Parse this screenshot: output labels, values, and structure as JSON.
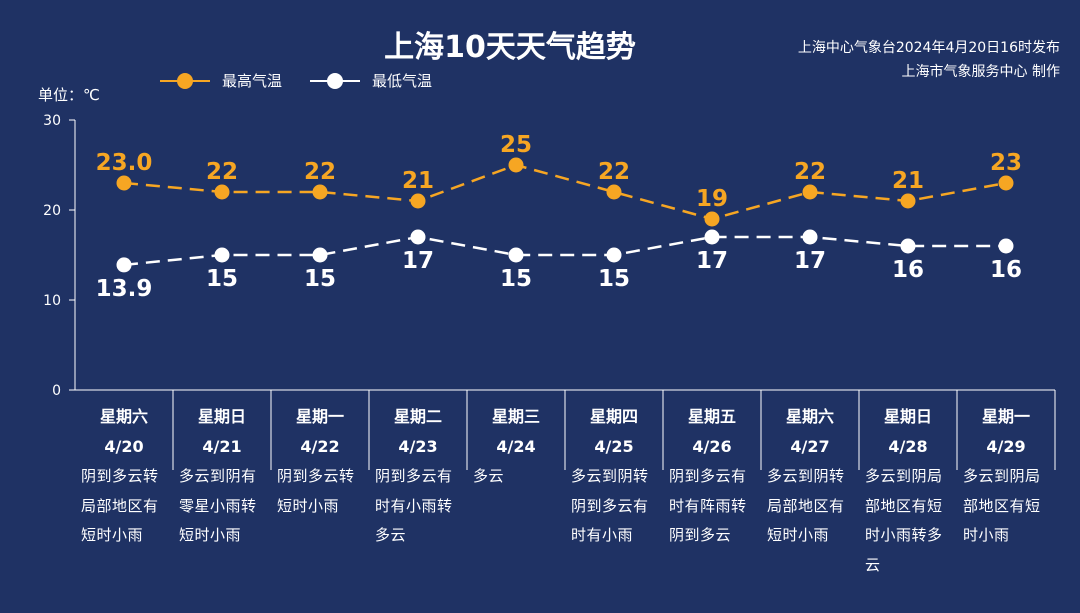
{
  "header": {
    "title": "上海10天天气趋势",
    "source_line1": "上海中心气象台2024年4月20日16时发布",
    "source_line2": "上海市气象服务中心 制作"
  },
  "unit_label": "单位：℃",
  "legend": {
    "high": "最高气温",
    "low": "最低气温"
  },
  "colors": {
    "background": "#1f3264",
    "high": "#f6a623",
    "low": "#ffffff",
    "axis": "#ffffff"
  },
  "chart_data": {
    "type": "line",
    "title": "上海10天天气趋势",
    "ylabel": "单位：℃",
    "ylim": [
      0,
      30
    ],
    "yticks": [
      0,
      10,
      20,
      30
    ],
    "grid": false,
    "legend_position": "top-left",
    "categories": [
      {
        "weekday": "星期六",
        "date": "4/20"
      },
      {
        "weekday": "星期日",
        "date": "4/21"
      },
      {
        "weekday": "星期一",
        "date": "4/22"
      },
      {
        "weekday": "星期二",
        "date": "4/23"
      },
      {
        "weekday": "星期三",
        "date": "4/24"
      },
      {
        "weekday": "星期四",
        "date": "4/25"
      },
      {
        "weekday": "星期五",
        "date": "4/26"
      },
      {
        "weekday": "星期六",
        "date": "4/27"
      },
      {
        "weekday": "星期日",
        "date": "4/28"
      },
      {
        "weekday": "星期一",
        "date": "4/29"
      }
    ],
    "series": [
      {
        "name": "最高气温",
        "values": [
          23.0,
          22,
          22,
          21,
          25,
          22,
          19,
          22,
          21,
          23
        ],
        "labels": [
          "23.0",
          "22",
          "22",
          "21",
          "25",
          "22",
          "19",
          "22",
          "21",
          "23"
        ]
      },
      {
        "name": "最低气温",
        "values": [
          13.9,
          15,
          15,
          17,
          15,
          15,
          17,
          17,
          16,
          16
        ],
        "labels": [
          "13.9",
          "15",
          "15",
          "17",
          "15",
          "15",
          "17",
          "17",
          "16",
          "16"
        ]
      }
    ],
    "weather": [
      [
        "阴到多云转",
        "局部地区有",
        "短时小雨"
      ],
      [
        "多云到阴有",
        "零星小雨转",
        "短时小雨"
      ],
      [
        "阴到多云转",
        "短时小雨"
      ],
      [
        "阴到多云有",
        "时有小雨转",
        "多云"
      ],
      [
        "多云"
      ],
      [
        "多云到阴转",
        "阴到多云有",
        "时有小雨"
      ],
      [
        "阴到多云有",
        "时有阵雨转",
        "阴到多云"
      ],
      [
        "多云到阴转",
        "局部地区有",
        "短时小雨"
      ],
      [
        "多云到阴局",
        "部地区有短",
        "时小雨转多",
        "云"
      ],
      [
        "多云到阴局",
        "部地区有短",
        "时小雨"
      ]
    ]
  }
}
